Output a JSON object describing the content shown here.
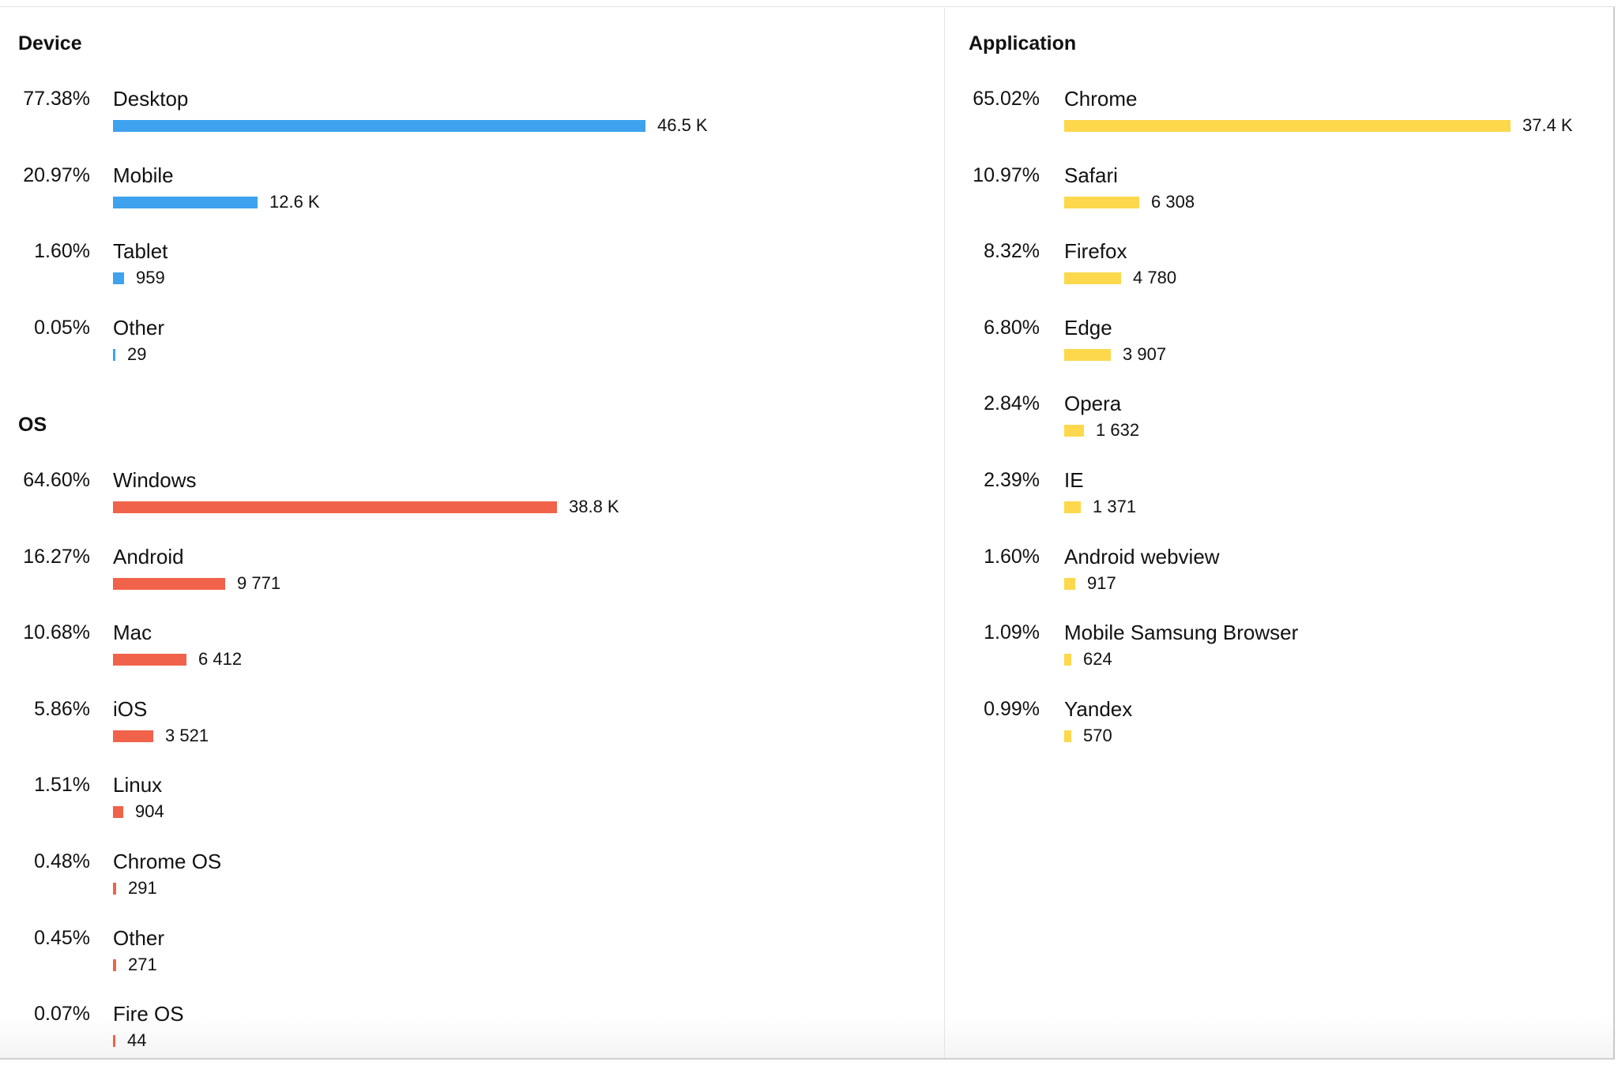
{
  "colors": {
    "device": "#3ea2ee",
    "os": "#f0634a",
    "application": "#fdd84c"
  },
  "chart_data": [
    {
      "type": "bar",
      "orientation": "horizontal",
      "title": "Device",
      "color": "#3ea2ee",
      "max": 46500,
      "items": [
        {
          "label": "Desktop",
          "percent": "77.38%",
          "value": 46500,
          "value_label": "46.5 K"
        },
        {
          "label": "Mobile",
          "percent": "20.97%",
          "value": 12600,
          "value_label": "12.6 K"
        },
        {
          "label": "Tablet",
          "percent": "1.60%",
          "value": 959,
          "value_label": "959"
        },
        {
          "label": "Other",
          "percent": "0.05%",
          "value": 29,
          "value_label": "29"
        }
      ]
    },
    {
      "type": "bar",
      "orientation": "horizontal",
      "title": "OS",
      "color": "#f0634a",
      "max": 46500,
      "items": [
        {
          "label": "Windows",
          "percent": "64.60%",
          "value": 38800,
          "value_label": "38.8 K"
        },
        {
          "label": "Android",
          "percent": "16.27%",
          "value": 9771,
          "value_label": "9 771"
        },
        {
          "label": "Mac",
          "percent": "10.68%",
          "value": 6412,
          "value_label": "6 412"
        },
        {
          "label": "iOS",
          "percent": "5.86%",
          "value": 3521,
          "value_label": "3 521"
        },
        {
          "label": "Linux",
          "percent": "1.51%",
          "value": 904,
          "value_label": "904"
        },
        {
          "label": "Chrome OS",
          "percent": "0.48%",
          "value": 291,
          "value_label": "291"
        },
        {
          "label": "Other",
          "percent": "0.45%",
          "value": 271,
          "value_label": "271"
        },
        {
          "label": "Fire OS",
          "percent": "0.07%",
          "value": 44,
          "value_label": "44"
        }
      ]
    },
    {
      "type": "bar",
      "orientation": "horizontal",
      "title": "Application",
      "color": "#fdd84c",
      "max": 37400,
      "items": [
        {
          "label": "Chrome",
          "percent": "65.02%",
          "value": 37400,
          "value_label": "37.4 K"
        },
        {
          "label": "Safari",
          "percent": "10.97%",
          "value": 6308,
          "value_label": "6 308"
        },
        {
          "label": "Firefox",
          "percent": "8.32%",
          "value": 4780,
          "value_label": "4 780"
        },
        {
          "label": "Edge",
          "percent": "6.80%",
          "value": 3907,
          "value_label": "3 907"
        },
        {
          "label": "Opera",
          "percent": "2.84%",
          "value": 1632,
          "value_label": "1 632"
        },
        {
          "label": "IE",
          "percent": "2.39%",
          "value": 1371,
          "value_label": "1 371"
        },
        {
          "label": "Android webview",
          "percent": "1.60%",
          "value": 917,
          "value_label": "917"
        },
        {
          "label": "Mobile Samsung Browser",
          "percent": "1.09%",
          "value": 624,
          "value_label": "624"
        },
        {
          "label": "Yandex",
          "percent": "0.99%",
          "value": 570,
          "value_label": "570"
        }
      ]
    }
  ]
}
